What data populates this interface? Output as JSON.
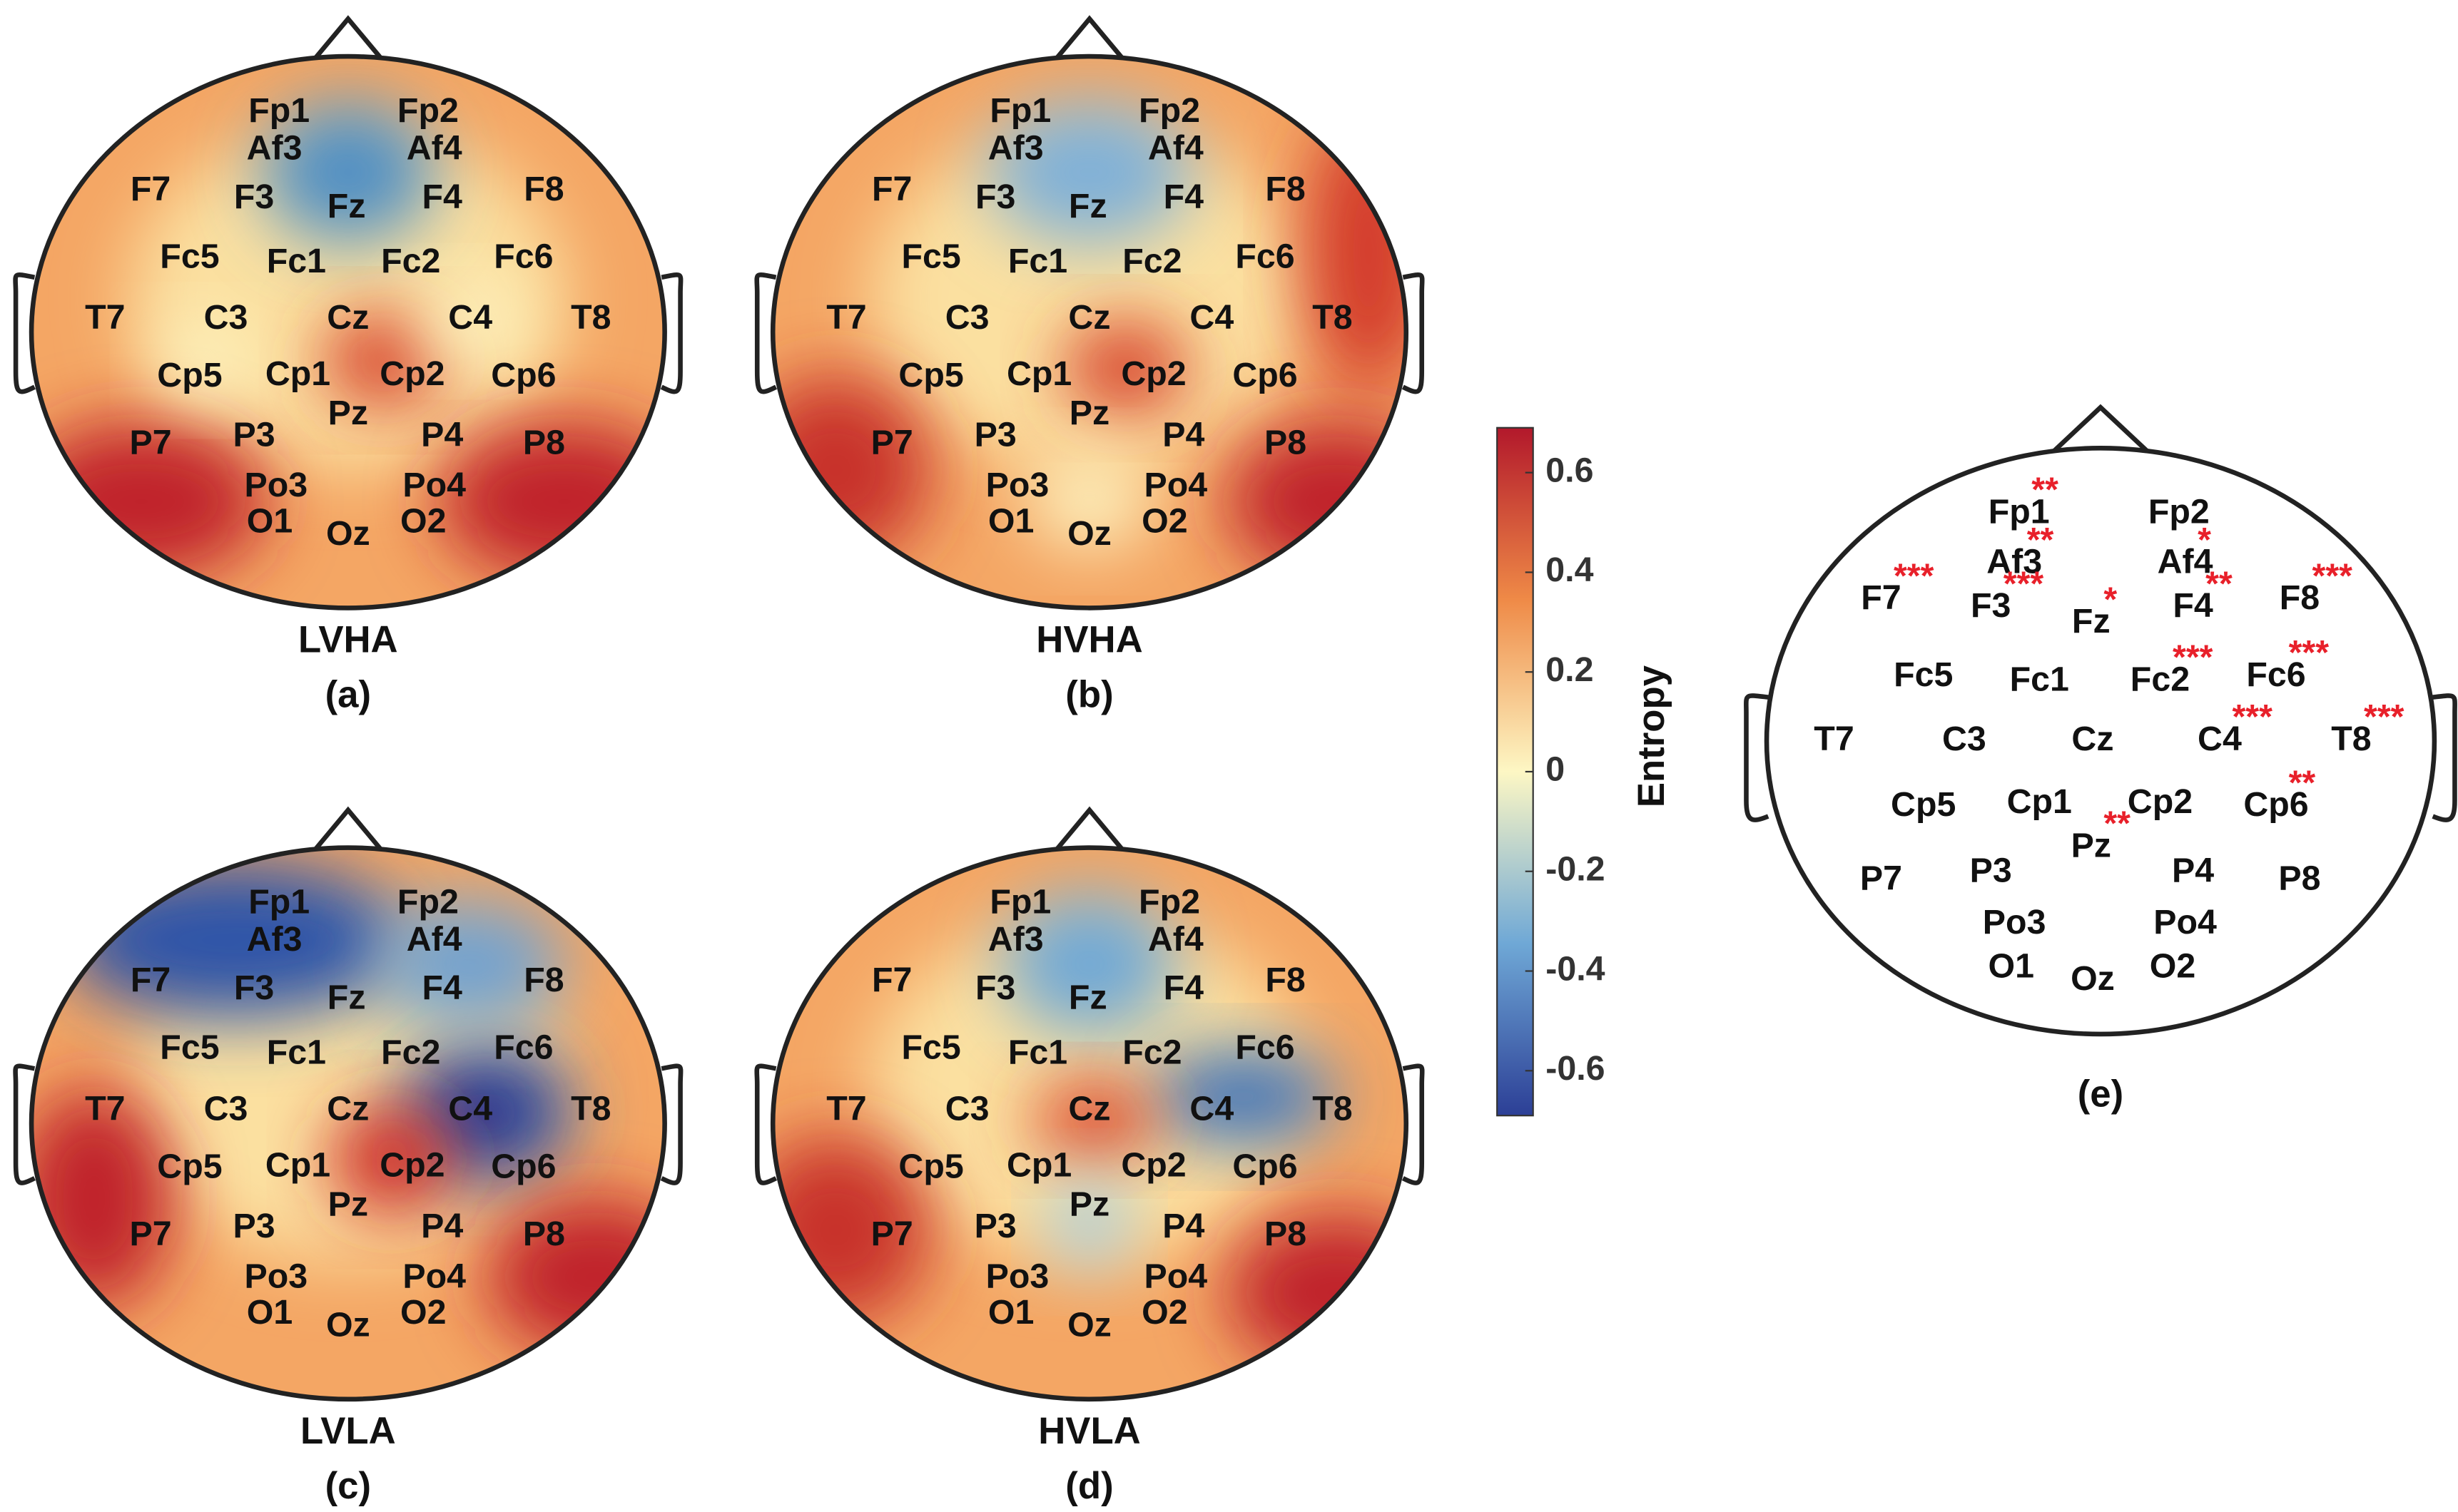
{
  "panels": [
    {
      "title": "LVHA",
      "label": "(a)"
    },
    {
      "title": "HVHA",
      "label": "(b)"
    },
    {
      "title": "LVLA",
      "label": "(c)"
    },
    {
      "title": "HVLA",
      "label": "(d)"
    }
  ],
  "electrodes": [
    "Fp1",
    "Fp2",
    "Af3",
    "Af4",
    "F7",
    "F3",
    "Fz",
    "F4",
    "F8",
    "Fc5",
    "Fc1",
    "Fc2",
    "Fc6",
    "T7",
    "C3",
    "Cz",
    "C4",
    "T8",
    "Cp5",
    "Cp1",
    "Cp2",
    "Cp6",
    "Pz",
    "P7",
    "P3",
    "P4",
    "P8",
    "Po3",
    "Po4",
    "O1",
    "Oz",
    "O2"
  ],
  "colorbar": {
    "label": "Entropy",
    "ylim": [
      -0.69,
      0.69
    ],
    "yticks": [
      -0.6,
      -0.4,
      -0.2,
      0,
      0.2,
      0.4,
      0.6
    ]
  },
  "panel_e": {
    "label": "(e)",
    "stars": [
      {
        "electrode": "Fp1",
        "mark": "**"
      },
      {
        "electrode": "Af3",
        "mark": "**"
      },
      {
        "electrode": "Af4",
        "mark": "*"
      },
      {
        "electrode": "F7",
        "mark": "***"
      },
      {
        "electrode": "F3",
        "mark": "***"
      },
      {
        "electrode": "Fz",
        "mark": "*"
      },
      {
        "electrode": "F4",
        "mark": "**"
      },
      {
        "electrode": "F8",
        "mark": "***"
      },
      {
        "electrode": "Fc2",
        "mark": "***"
      },
      {
        "electrode": "Fc6",
        "mark": "***"
      },
      {
        "electrode": "C4",
        "mark": "***"
      },
      {
        "electrode": "T8",
        "mark": "***"
      },
      {
        "electrode": "Cp6",
        "mark": "**"
      },
      {
        "electrode": "Pz",
        "mark": "**"
      }
    ]
  }
}
